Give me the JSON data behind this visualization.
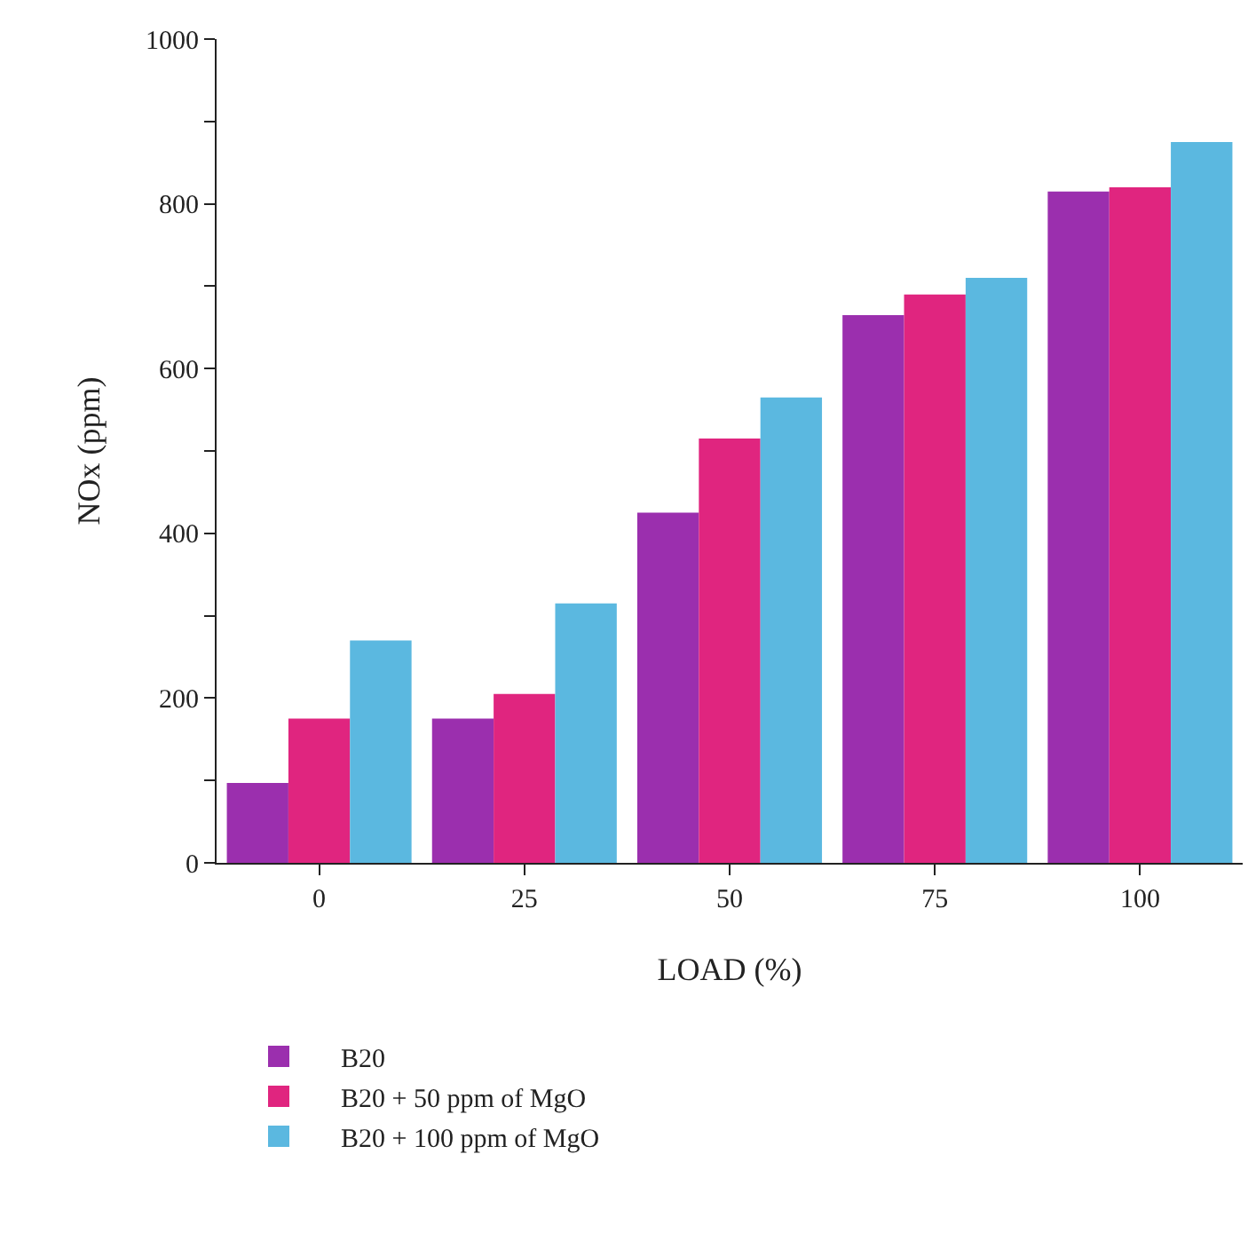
{
  "chart_data": {
    "type": "bar",
    "xlabel": "LOAD (%)",
    "ylabel": "NOx (ppm)",
    "categories": [
      "0",
      "25",
      "50",
      "75",
      "100"
    ],
    "series": [
      {
        "name": "B20",
        "color": "#9b2fae",
        "values": [
          97,
          175,
          425,
          665,
          815
        ]
      },
      {
        "name": "B20 + 50 ppm of MgO",
        "color": "#e0257f",
        "values": [
          175,
          205,
          515,
          690,
          820
        ]
      },
      {
        "name": "B20 + 100 ppm of MgO",
        "color": "#5bb8e0",
        "values": [
          270,
          315,
          565,
          710,
          875
        ]
      }
    ],
    "ylim": [
      0,
      1000
    ],
    "yticks": [
      0,
      {
        "value": 100,
        "label": null
      },
      200,
      {
        "value": 300,
        "label": null
      },
      400,
      {
        "value": 500,
        "label": null
      },
      600,
      {
        "value": 700,
        "label": null
      },
      800,
      {
        "value": 900,
        "label": null
      },
      1000
    ],
    "grid": false,
    "legend": "bottom left"
  }
}
